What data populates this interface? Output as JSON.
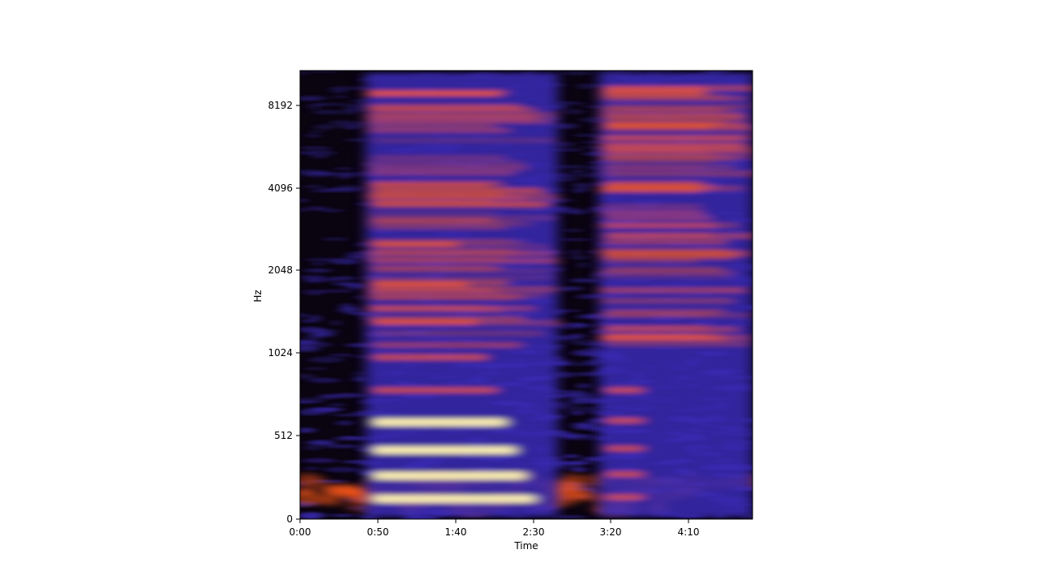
{
  "chart_data": {
    "type": "heatmap",
    "title": "",
    "xlabel": "Time",
    "ylabel": "Hz",
    "x_ticks": [
      "0:00",
      "0:50",
      "1:40",
      "2:30",
      "3:20",
      "4:10"
    ],
    "y_ticks": [
      "0",
      "512",
      "1024",
      "2048",
      "4096",
      "8192"
    ],
    "grid": false,
    "colormap": "inferno-like",
    "colors": {
      "background": "#0a0410",
      "noise": "#3a2ab5",
      "mid": "#ff5a1a",
      "high": "#fff3b0"
    },
    "segments": [
      {
        "start_pct": 0.145,
        "end_pct": 0.57
      },
      {
        "start_pct": 0.66,
        "end_pct": 1.0
      }
    ]
  }
}
